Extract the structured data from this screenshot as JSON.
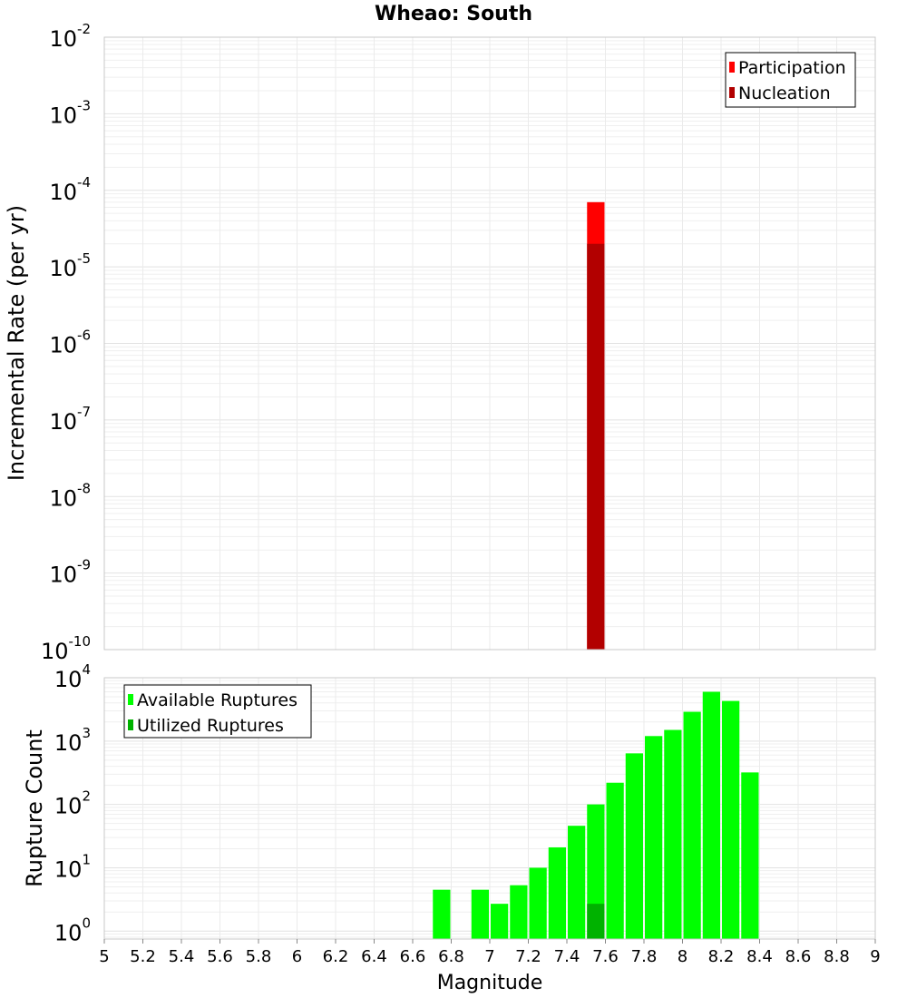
{
  "chart_data": [
    {
      "type": "bar",
      "title": "Wheao: South",
      "ylabel": "Incremental Rate (per yr)",
      "xlabel": "",
      "yscale": "log",
      "ylim": [
        1e-10,
        0.01
      ],
      "xlim": [
        5,
        9
      ],
      "grid": true,
      "legend_position": "top-right",
      "y_tick_labels": [
        {
          "base": "10",
          "exp": "-10"
        },
        {
          "base": "10",
          "exp": "-9"
        },
        {
          "base": "10",
          "exp": "-8"
        },
        {
          "base": "10",
          "exp": "-7"
        },
        {
          "base": "10",
          "exp": "-6"
        },
        {
          "base": "10",
          "exp": "-5"
        },
        {
          "base": "10",
          "exp": "-4"
        },
        {
          "base": "10",
          "exp": "-3"
        },
        {
          "base": "10",
          "exp": "-2"
        }
      ],
      "series": [
        {
          "name": "Participation",
          "color": "#ff0000",
          "points": [
            {
              "x": 7.55,
              "y": 7e-05
            }
          ]
        },
        {
          "name": "Nucleation",
          "color": "#b20000",
          "points": [
            {
              "x": 7.55,
              "y": 2e-05
            }
          ]
        }
      ]
    },
    {
      "type": "bar",
      "ylabel": "Rupture Count",
      "xlabel": "Magnitude",
      "yscale": "log",
      "ylim": [
        0.75,
        10000
      ],
      "xlim": [
        5,
        9
      ],
      "grid": true,
      "legend_position": "top-left",
      "y_tick_labels": [
        {
          "base": "10",
          "exp": "0"
        },
        {
          "base": "10",
          "exp": "1"
        },
        {
          "base": "10",
          "exp": "2"
        },
        {
          "base": "10",
          "exp": "3"
        },
        {
          "base": "10",
          "exp": "4"
        }
      ],
      "x_tick_labels": [
        "5",
        "5.2",
        "5.4",
        "5.6",
        "5.8",
        "6",
        "6.2",
        "6.4",
        "6.6",
        "6.8",
        "7",
        "7.2",
        "7.4",
        "7.6",
        "7.8",
        "8",
        "8.2",
        "8.4",
        "8.6",
        "8.8",
        "9"
      ],
      "series": [
        {
          "name": "Available Ruptures",
          "color": "#00ff00",
          "points": [
            {
              "x": 6.75,
              "y": 4.5
            },
            {
              "x": 6.95,
              "y": 4.5
            },
            {
              "x": 7.05,
              "y": 2.7
            },
            {
              "x": 7.15,
              "y": 5.3
            },
            {
              "x": 7.25,
              "y": 10
            },
            {
              "x": 7.35,
              "y": 21
            },
            {
              "x": 7.45,
              "y": 46
            },
            {
              "x": 7.55,
              "y": 100
            },
            {
              "x": 7.65,
              "y": 220
            },
            {
              "x": 7.75,
              "y": 640
            },
            {
              "x": 7.85,
              "y": 1200
            },
            {
              "x": 7.95,
              "y": 1500
            },
            {
              "x": 8.05,
              "y": 2900
            },
            {
              "x": 8.15,
              "y": 6000
            },
            {
              "x": 8.25,
              "y": 4300
            },
            {
              "x": 8.35,
              "y": 320
            }
          ]
        },
        {
          "name": "Utilized Ruptures",
          "color": "#00b200",
          "points": [
            {
              "x": 7.55,
              "y": 2.7
            }
          ]
        }
      ]
    }
  ]
}
